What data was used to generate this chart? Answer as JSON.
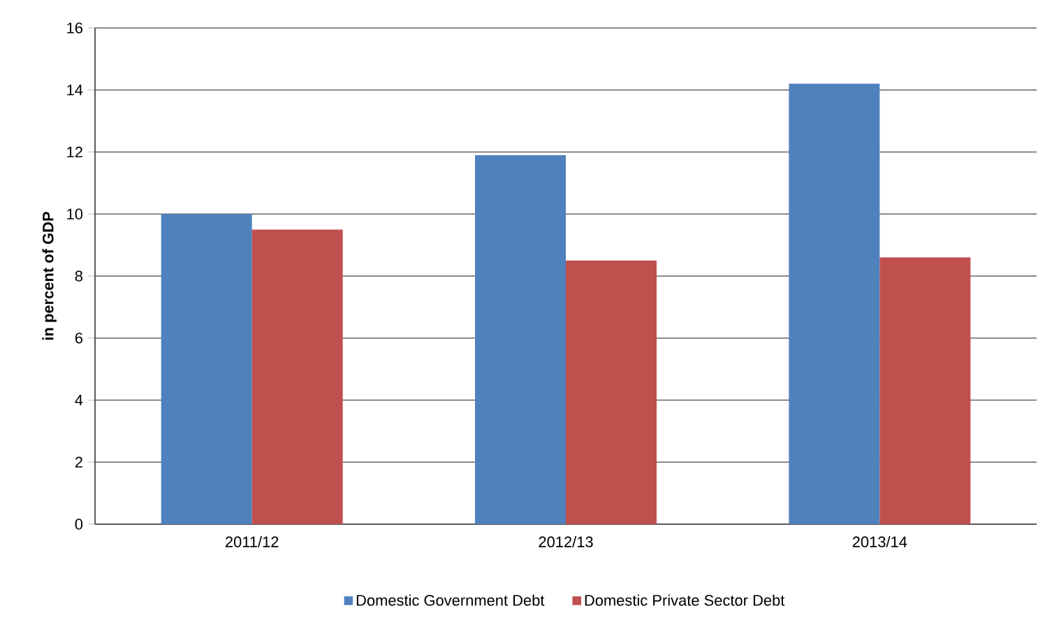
{
  "chart_data": {
    "type": "bar",
    "ylabel": "in percent of GDP",
    "categories": [
      "2011/12",
      "2012/13",
      "2013/14"
    ],
    "series": [
      {
        "name": "Domestic Government Debt",
        "color": "#4f81bd",
        "values": [
          10.0,
          11.9,
          14.2
        ]
      },
      {
        "name": "Domestic Private Sector Debt",
        "color": "#c0504d",
        "values": [
          9.5,
          8.5,
          8.6
        ]
      }
    ],
    "ylim": [
      0,
      16
    ],
    "yticks": [
      0,
      2,
      4,
      6,
      8,
      10,
      12,
      14,
      16
    ],
    "grid": "y",
    "legend": "bottom"
  }
}
